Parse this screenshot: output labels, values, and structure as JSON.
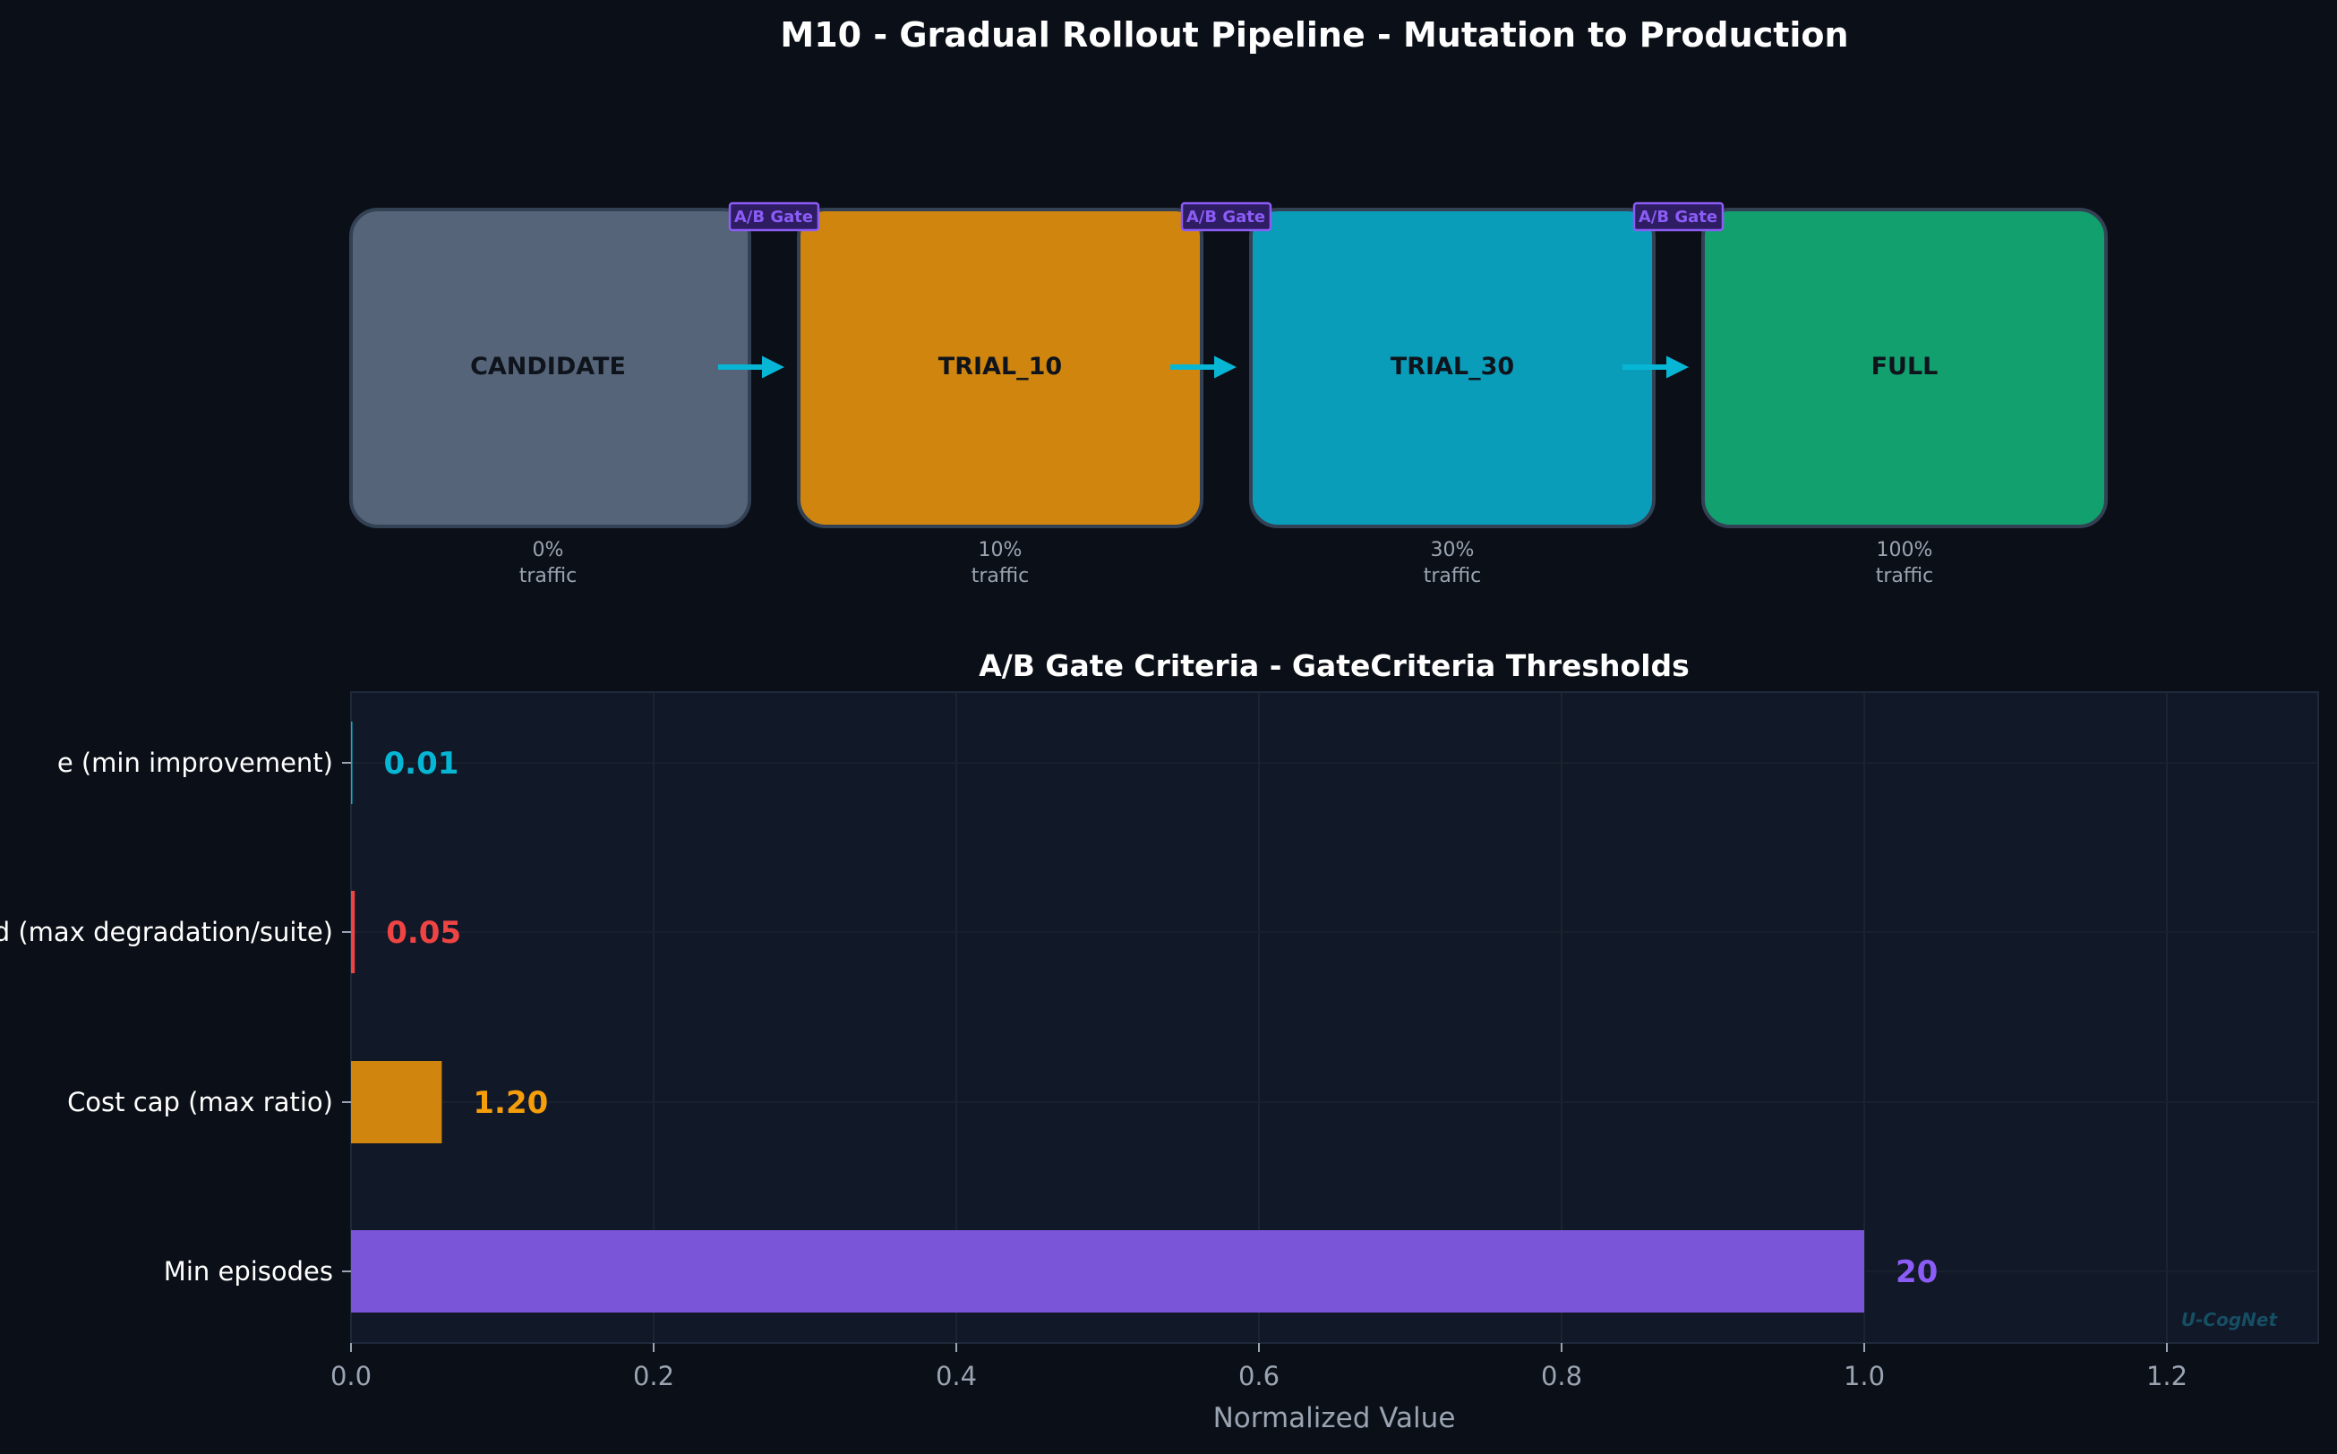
{
  "figure_title": "M10 - Gradual Rollout Pipeline - Mutation to Production",
  "pipeline": {
    "gate_label": "A/B Gate",
    "stages": [
      {
        "name": "CANDIDATE",
        "pct": "0%",
        "unit": "traffic",
        "color": "#556478"
      },
      {
        "name": "TRIAL_10",
        "pct": "10%",
        "unit": "traffic",
        "color": "#d0860e"
      },
      {
        "name": "TRIAL_30",
        "pct": "30%",
        "unit": "traffic",
        "color": "#0a9dba"
      },
      {
        "name": "FULL",
        "pct": "100%",
        "unit": "traffic",
        "color": "#12a06f"
      }
    ],
    "arrow_color": "#06b6d4",
    "gate_color": "#8b5cf6"
  },
  "chart_data": {
    "type": "bar",
    "orientation": "horizontal",
    "title": "A/B Gate Criteria - GateCriteria Thresholds",
    "xlabel": "Normalized Value",
    "ylabel": "",
    "xlim": [
      0,
      1.3
    ],
    "xticks": [
      0.0,
      0.2,
      0.4,
      0.6,
      0.8,
      1.0,
      1.2
    ],
    "xtick_labels": [
      "0.0",
      "0.2",
      "0.4",
      "0.6",
      "0.8",
      "1.0",
      "1.2"
    ],
    "grid": true,
    "categories": [
      "e (min improvement)",
      "d (max degradation/suite)",
      "Cost cap (max ratio)",
      "Min episodes"
    ],
    "values": [
      0.0005,
      0.0025,
      0.06,
      1.0
    ],
    "value_labels": [
      "0.01",
      "0.05",
      "1.20",
      "20"
    ],
    "colors": [
      "#06b6d4",
      "#ef4444",
      "#d0860e",
      "#7b55d8"
    ],
    "label_colors": [
      "#06b6d4",
      "#ef4444",
      "#f59e0b",
      "#8b5cf6"
    ],
    "watermark": "U-CogNet"
  }
}
